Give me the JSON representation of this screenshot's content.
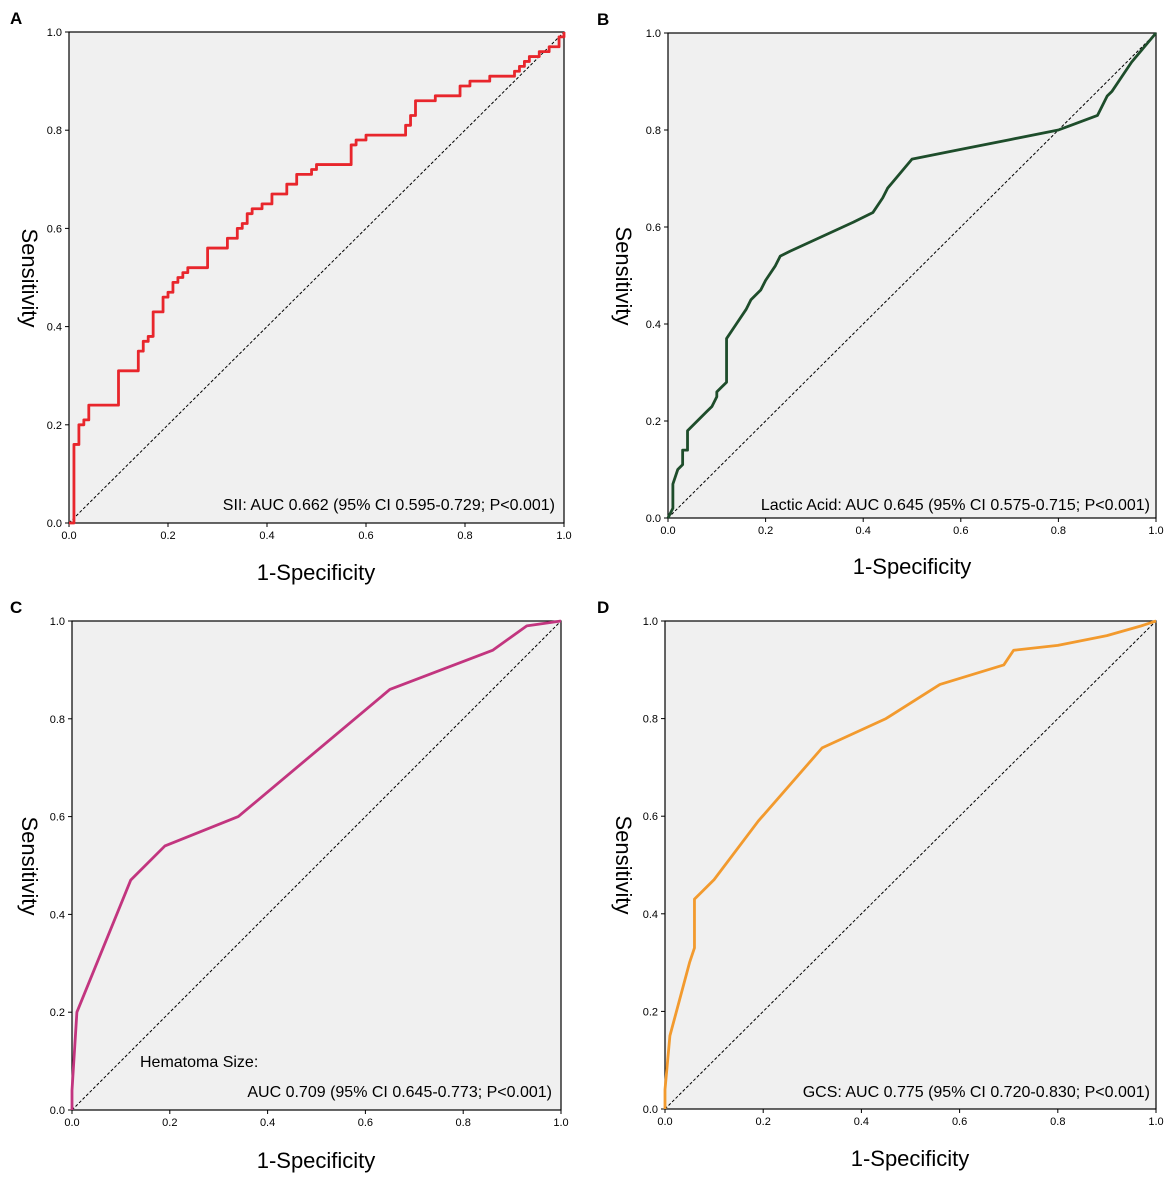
{
  "figure": {
    "xlabel": "1-Specificity",
    "ylabel": "Sensitivity",
    "x_ticks": [
      "0.0",
      "0.2",
      "0.4",
      "0.6",
      "0.8",
      "1.0"
    ],
    "y_ticks": [
      "0.0",
      "0.2",
      "0.4",
      "0.6",
      "0.8",
      "1.0"
    ]
  },
  "chart_data": [
    {
      "panel": "A",
      "type": "line",
      "xlabel": "1-Specificity",
      "ylabel": "Sensitivity",
      "xlim": [
        0,
        1
      ],
      "ylim": [
        0,
        1
      ],
      "grid": false,
      "annotation_lines": [
        "SII: AUC 0.662 (95% CI 0.595-0.729; P<0.001)"
      ],
      "series": [
        {
          "name": "SII",
          "color": "#e8262c",
          "step": true,
          "x": [
            0.0,
            0.01,
            0.01,
            0.02,
            0.02,
            0.03,
            0.03,
            0.04,
            0.04,
            0.05,
            0.05,
            0.1,
            0.1,
            0.11,
            0.14,
            0.14,
            0.15,
            0.15,
            0.16,
            0.17,
            0.17,
            0.19,
            0.19,
            0.2,
            0.21,
            0.22,
            0.23,
            0.24,
            0.24,
            0.28,
            0.28,
            0.3,
            0.3,
            0.32,
            0.32,
            0.34,
            0.35,
            0.36,
            0.37,
            0.38,
            0.39,
            0.41,
            0.41,
            0.44,
            0.44,
            0.46,
            0.46,
            0.48,
            0.49,
            0.5,
            0.52,
            0.52,
            0.57,
            0.57,
            0.58,
            0.58,
            0.6,
            0.6,
            0.67,
            0.68,
            0.69,
            0.69,
            0.7,
            0.7,
            0.74,
            0.74,
            0.77,
            0.78,
            0.79,
            0.79,
            0.81,
            0.81,
            0.85,
            0.85,
            0.89,
            0.9,
            0.9,
            0.91,
            0.92,
            0.92,
            0.93,
            0.93,
            0.95,
            0.95,
            0.97,
            0.97,
            0.99,
            0.99,
            1.0
          ],
          "y": [
            0.0,
            0.06,
            0.16,
            0.16,
            0.2,
            0.2,
            0.21,
            0.21,
            0.24,
            0.24,
            0.24,
            0.24,
            0.31,
            0.31,
            0.31,
            0.35,
            0.35,
            0.37,
            0.38,
            0.38,
            0.43,
            0.43,
            0.46,
            0.47,
            0.49,
            0.5,
            0.51,
            0.51,
            0.52,
            0.52,
            0.56,
            0.56,
            0.56,
            0.56,
            0.58,
            0.6,
            0.61,
            0.63,
            0.64,
            0.64,
            0.65,
            0.65,
            0.67,
            0.67,
            0.69,
            0.69,
            0.71,
            0.71,
            0.72,
            0.73,
            0.73,
            0.73,
            0.73,
            0.77,
            0.77,
            0.78,
            0.78,
            0.79,
            0.79,
            0.81,
            0.81,
            0.83,
            0.83,
            0.86,
            0.86,
            0.87,
            0.87,
            0.87,
            0.89,
            0.89,
            0.9,
            0.9,
            0.9,
            0.91,
            0.91,
            0.91,
            0.92,
            0.93,
            0.93,
            0.94,
            0.94,
            0.95,
            0.95,
            0.96,
            0.96,
            0.97,
            0.97,
            0.99,
            1.0
          ]
        }
      ]
    },
    {
      "panel": "B",
      "type": "line",
      "xlabel": "1-Specificity",
      "ylabel": "Sensitivity",
      "xlim": [
        0,
        1
      ],
      "ylim": [
        0,
        1
      ],
      "grid": false,
      "annotation_lines": [
        "Lactic Acid: AUC 0.645 (95% CI 0.575-0.715; P<0.001)"
      ],
      "series": [
        {
          "name": "Lactic Acid",
          "color": "#1e4d2b",
          "step": false,
          "x": [
            0.0,
            0.01,
            0.01,
            0.02,
            0.03,
            0.03,
            0.04,
            0.04,
            0.05,
            0.06,
            0.07,
            0.08,
            0.09,
            0.1,
            0.1,
            0.11,
            0.12,
            0.12,
            0.14,
            0.16,
            0.17,
            0.18,
            0.19,
            0.2,
            0.22,
            0.23,
            0.25,
            0.38,
            0.42,
            0.44,
            0.45,
            0.5,
            0.6,
            0.7,
            0.8,
            0.88,
            0.89,
            0.9,
            0.91,
            0.93,
            0.95,
            1.0
          ],
          "y": [
            0.0,
            0.02,
            0.07,
            0.1,
            0.11,
            0.14,
            0.14,
            0.18,
            0.19,
            0.2,
            0.21,
            0.22,
            0.23,
            0.25,
            0.26,
            0.27,
            0.28,
            0.37,
            0.4,
            0.43,
            0.45,
            0.46,
            0.47,
            0.49,
            0.52,
            0.54,
            0.55,
            0.61,
            0.63,
            0.66,
            0.68,
            0.74,
            0.76,
            0.78,
            0.8,
            0.83,
            0.85,
            0.87,
            0.88,
            0.91,
            0.94,
            1.0
          ]
        }
      ]
    },
    {
      "panel": "C",
      "type": "line",
      "xlabel": "1-Specificity",
      "ylabel": "Sensitivity",
      "xlim": [
        0,
        1
      ],
      "ylim": [
        0,
        1
      ],
      "grid": false,
      "annotation_lines": [
        "Hematoma Size:",
        "AUC 0.709 (95% CI 0.645-0.773; P<0.001)"
      ],
      "series": [
        {
          "name": "Hematoma Size",
          "color": "#c2357f",
          "step": false,
          "x": [
            0.0,
            0.0,
            0.01,
            0.12,
            0.19,
            0.34,
            0.65,
            0.86,
            0.93,
            1.0
          ],
          "y": [
            0.0,
            0.04,
            0.2,
            0.47,
            0.54,
            0.6,
            0.86,
            0.94,
            0.99,
            1.0
          ]
        }
      ]
    },
    {
      "panel": "D",
      "type": "line",
      "xlabel": "1-Specificity",
      "ylabel": "Sensitivity",
      "xlim": [
        0,
        1
      ],
      "ylim": [
        0,
        1
      ],
      "grid": false,
      "annotation_lines": [
        "GCS: AUC 0.775 (95% CI 0.720-0.830; P<0.001)"
      ],
      "series": [
        {
          "name": "GCS",
          "color": "#f29a2e",
          "step": false,
          "x": [
            0.0,
            0.0,
            0.01,
            0.05,
            0.06,
            0.06,
            0.08,
            0.1,
            0.19,
            0.32,
            0.45,
            0.56,
            0.69,
            0.71,
            0.8,
            0.9,
            0.97,
            1.0
          ],
          "y": [
            0.0,
            0.04,
            0.15,
            0.3,
            0.33,
            0.43,
            0.45,
            0.47,
            0.59,
            0.74,
            0.8,
            0.87,
            0.91,
            0.94,
            0.95,
            0.97,
            0.99,
            1.0
          ]
        }
      ]
    }
  ]
}
